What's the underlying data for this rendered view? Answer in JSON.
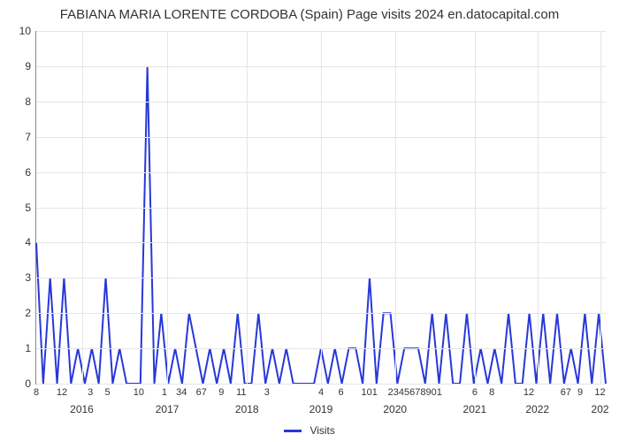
{
  "chart": {
    "type": "line",
    "title": "FABIANA MARIA LORENTE CORDOBA (Spain) Page visits 2024 en.datocapital.com",
    "title_fontsize": 15,
    "background_color": "#ffffff",
    "grid_color": "#e5e5e5",
    "axis_color": "#888888",
    "line_color": "#2838d8",
    "line_width": 2,
    "ylim": [
      0,
      10
    ],
    "ytick_step": 1,
    "y_ticks": [
      0,
      1,
      2,
      3,
      4,
      5,
      6,
      7,
      8,
      9,
      10
    ],
    "x_minor_labels": [
      "8",
      "12",
      "3",
      "5",
      "10",
      "1",
      "34",
      "67",
      "9",
      "11",
      "3",
      "4",
      "6",
      "101",
      "2345678901",
      "6",
      "8",
      "12",
      "67",
      "9",
      "12"
    ],
    "x_minor_positions": [
      0.0,
      0.045,
      0.095,
      0.125,
      0.18,
      0.225,
      0.255,
      0.29,
      0.325,
      0.36,
      0.405,
      0.5,
      0.535,
      0.585,
      0.665,
      0.77,
      0.8,
      0.865,
      0.93,
      0.955,
      0.99
    ],
    "x_year_labels": [
      "2016",
      "2017",
      "2018",
      "2019",
      "2020",
      "2021",
      "2022",
      "202"
    ],
    "x_year_positions": [
      0.08,
      0.23,
      0.37,
      0.5,
      0.63,
      0.77,
      0.88,
      0.99
    ],
    "values": [
      4,
      0,
      3,
      0,
      3,
      0,
      1,
      0,
      1,
      0,
      3,
      0,
      1,
      0,
      0,
      0,
      9,
      0,
      2,
      0,
      1,
      0,
      2,
      1,
      0,
      1,
      0,
      1,
      0,
      2,
      0,
      0,
      2,
      0,
      1,
      0,
      1,
      0,
      0,
      0,
      0,
      1,
      0,
      1,
      0,
      1,
      1,
      0,
      3,
      0,
      2,
      2,
      0,
      1,
      1,
      1,
      0,
      2,
      0,
      2,
      0,
      0,
      2,
      0,
      1,
      0,
      1,
      0,
      2,
      0,
      0,
      2,
      0,
      2,
      0,
      2,
      0,
      1,
      0,
      2,
      0,
      2,
      0
    ],
    "legend_label": "Visits",
    "legend_fontsize": 12,
    "tick_fontsize": 12
  }
}
